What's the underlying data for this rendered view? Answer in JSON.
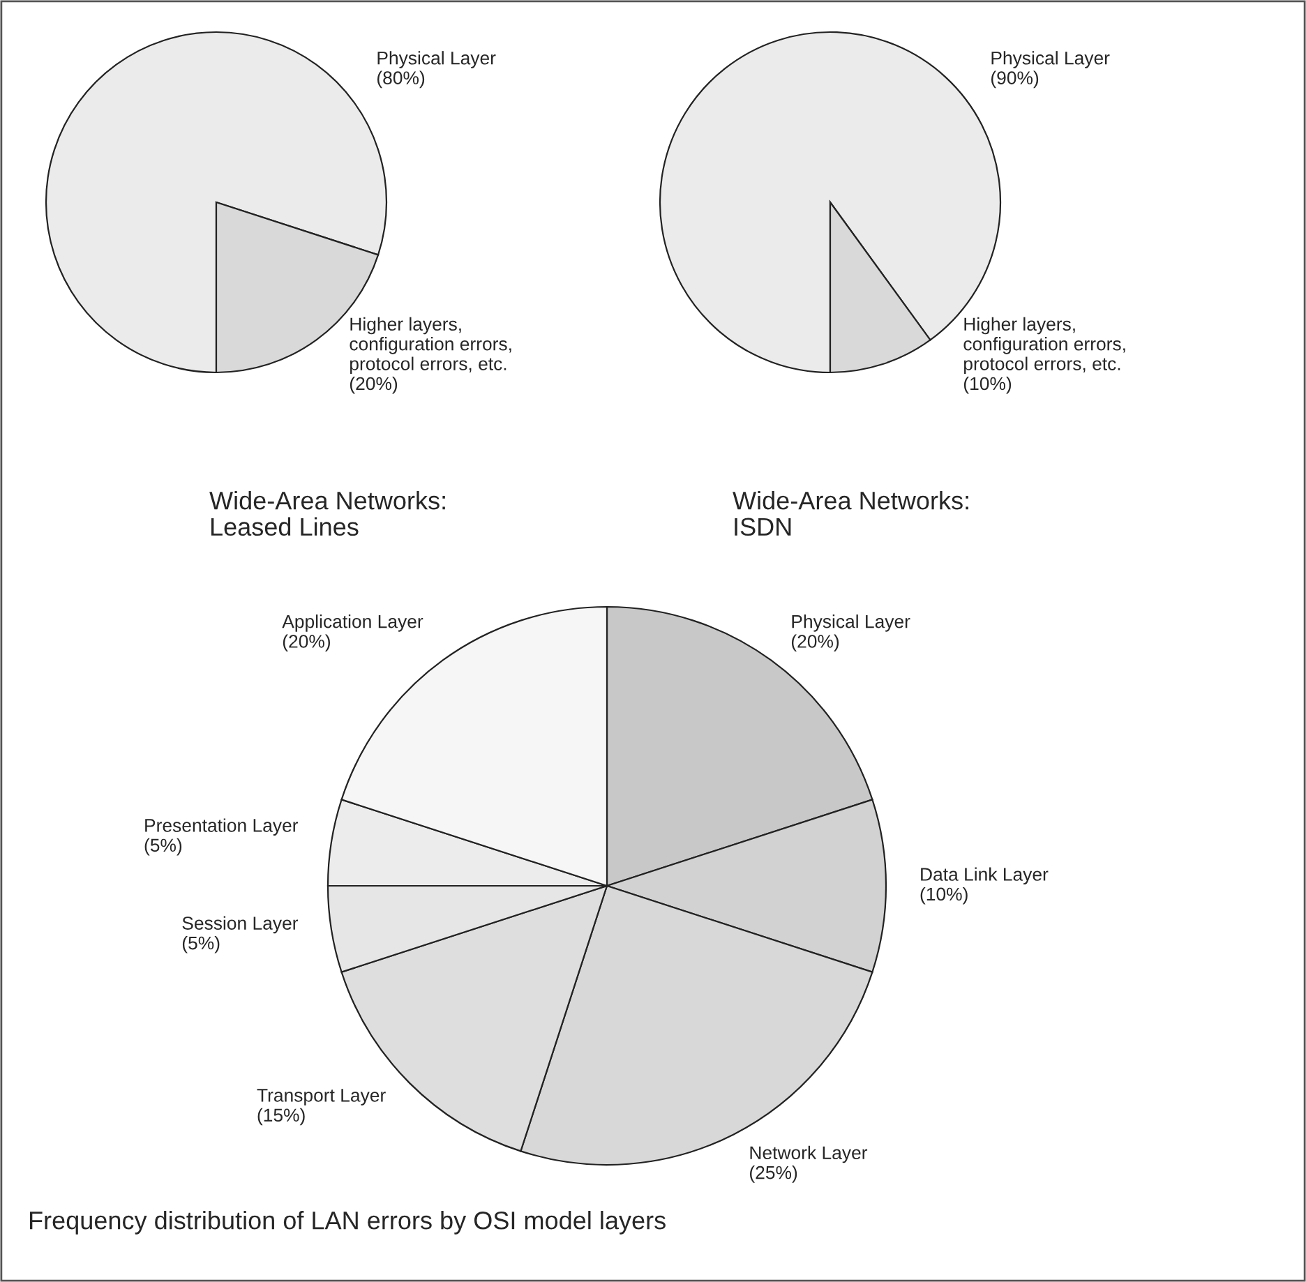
{
  "chart_data": [
    {
      "type": "pie",
      "title": "Wide-Area Networks:\nLeased Lines",
      "categories": [
        "Physical Layer",
        "Higher layers,\nconfiguration errors,\nprotocol errors, etc."
      ],
      "values": [
        80,
        20
      ],
      "value_labels": [
        "(80%)",
        "(20%)"
      ],
      "colors": [
        "#ebebeb",
        "#d9d9d9"
      ]
    },
    {
      "type": "pie",
      "title": "Wide-Area Networks:\nISDN",
      "categories": [
        "Physical Layer",
        "Higher layers,\nconfiguration errors,\nprotocol errors, etc."
      ],
      "values": [
        90,
        10
      ],
      "value_labels": [
        "(90%)",
        "(10%)"
      ],
      "colors": [
        "#ebebeb",
        "#d9d9d9"
      ]
    },
    {
      "type": "pie",
      "title": "Frequency distribution of LAN errors by OSI model layers",
      "categories": [
        "Physical Layer",
        "Data Link Layer",
        "Network Layer",
        "Transport Layer",
        "Session Layer",
        "Presentation Layer",
        "Application Layer"
      ],
      "values": [
        20,
        10,
        25,
        15,
        5,
        5,
        20
      ],
      "value_labels": [
        "(20%)",
        "(10%)",
        "(25%)",
        "(15%)",
        "(5%)",
        "(5%)",
        "(20%)"
      ],
      "colors": [
        "#c8c8c8",
        "#d2d2d2",
        "#d8d8d8",
        "#dedede",
        "#e6e6e6",
        "#ececec",
        "#f6f6f6"
      ]
    }
  ]
}
